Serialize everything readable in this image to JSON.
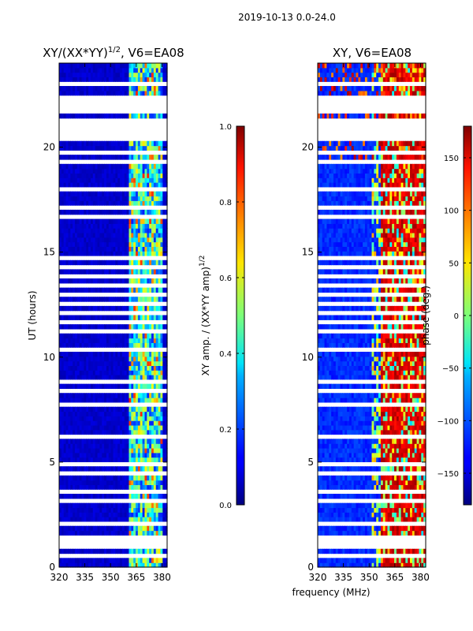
{
  "chart_data": [
    {
      "type": "heatmap",
      "suptitle": "2019-10-13 0.0-24.0",
      "title_main": "XY/(XX*YY)",
      "title_sup": "1/2",
      "title_suffix": ", V6=EA08",
      "ylabel": "UT (hours)",
      "xlabel": "",
      "xlim": [
        320,
        383
      ],
      "ylim": [
        0,
        24
      ],
      "xticks": [
        "320",
        "335",
        "350",
        "365",
        "380"
      ],
      "yticks": [
        "0",
        "5",
        "10",
        "15",
        "20"
      ],
      "colorbar": {
        "label": "XY amp. / (XX*YY amp)",
        "label_sup": "1/2",
        "range": [
          0.0,
          1.0
        ],
        "ticks": [
          "0.0",
          "0.2",
          "0.4",
          "0.6",
          "0.8",
          "1.0"
        ],
        "colormap": "jet"
      },
      "description_values": {
        "background_level": 0.05,
        "high_band_mhz": [
          361,
          381
        ],
        "high_band_level": 0.45
      }
    },
    {
      "type": "heatmap",
      "title": "XY, V6=EA08",
      "xlabel": "frequency (MHz)",
      "xlim": [
        320,
        383
      ],
      "ylim": [
        0,
        24
      ],
      "xticks": [
        "320",
        "335",
        "350",
        "365",
        "380"
      ],
      "yticks": [
        "0",
        "5",
        "10",
        "15",
        "20"
      ],
      "colorbar": {
        "label": "phase (deg.)",
        "range": [
          -180,
          180
        ],
        "ticks": [
          "-150",
          "-100",
          "-50",
          "0",
          "50",
          "100",
          "150"
        ],
        "colormap": "jet"
      },
      "description_values": {
        "low_band_phase_deg": -120,
        "high_band_mhz": [
          357,
          383
        ],
        "high_band_phase_deg": 150
      }
    }
  ],
  "flagged_gaps_hours": [
    [
      0.45,
      0.65
    ],
    [
      0.9,
      1.05
    ],
    [
      1.2,
      1.45
    ],
    [
      2.0,
      2.15
    ],
    [
      2.3,
      2.45
    ],
    [
      3.05,
      3.2
    ],
    [
      3.5,
      3.6
    ],
    [
      4.4,
      4.55
    ],
    [
      4.9,
      5.0
    ],
    [
      6.15,
      6.3
    ],
    [
      6.55,
      6.65
    ],
    [
      7.15,
      7.3
    ],
    [
      7.65,
      7.75
    ],
    [
      8.0,
      8.1
    ],
    [
      8.4,
      8.55
    ],
    [
      8.8,
      8.9
    ],
    [
      9.3,
      9.45
    ],
    [
      9.75,
      9.85
    ],
    [
      10.35,
      10.5
    ],
    [
      11.1,
      11.3
    ],
    [
      11.55,
      11.7
    ],
    [
      12.0,
      12.15
    ],
    [
      12.5,
      12.65
    ],
    [
      12.95,
      13.05
    ],
    [
      13.35,
      13.5
    ],
    [
      13.85,
      14.0
    ],
    [
      14.25,
      14.4
    ],
    [
      14.6,
      14.75
    ],
    [
      15.4,
      15.55
    ],
    [
      16.05,
      16.2
    ],
    [
      16.55,
      16.7
    ],
    [
      17.1,
      17.3
    ],
    [
      17.6,
      17.75
    ],
    [
      17.95,
      18.1
    ],
    [
      18.7,
      18.85
    ],
    [
      19.2,
      19.35
    ],
    [
      19.7,
      19.9
    ],
    [
      20.3,
      21.35
    ],
    [
      21.55,
      22.15
    ],
    [
      22.35,
      22.5
    ],
    [
      22.9,
      23.05
    ],
    [
      23.3,
      23.45
    ]
  ]
}
